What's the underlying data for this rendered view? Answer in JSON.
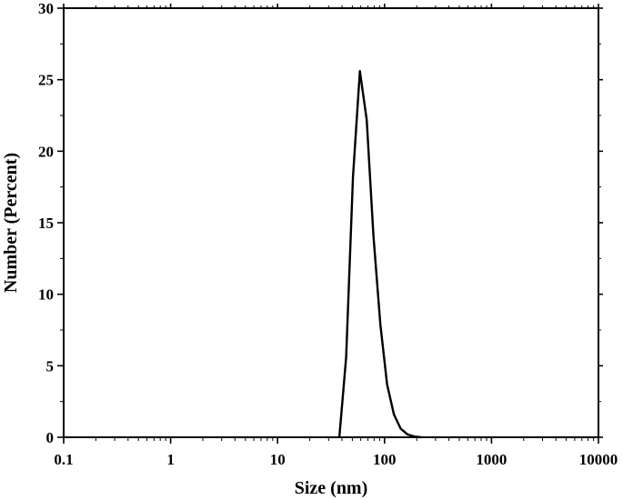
{
  "chart_data": {
    "type": "line",
    "title": "",
    "xlabel": "Size (nm)",
    "ylabel": "Number (Percent)",
    "xscale": "log",
    "xlim": [
      0.1,
      10000
    ],
    "ylim": [
      0,
      30
    ],
    "xticks": [
      "0.1",
      "1",
      "10",
      "100",
      "1000",
      "10000"
    ],
    "yticks": [
      "0",
      "5",
      "10",
      "15",
      "20",
      "25",
      "30"
    ],
    "grid": false,
    "series": [
      {
        "color": "#000000",
        "x": [
          37.8,
          43.8,
          50.7,
          58.8,
          68.1,
          78.8,
          91.3,
          105.7,
          122.4,
          141.8,
          164.2,
          190.1,
          220.2
        ],
        "y": [
          0,
          5.6,
          18.2,
          25.6,
          22.2,
          14.1,
          7.9,
          3.7,
          1.6,
          0.6,
          0.2,
          0.05,
          0
        ]
      }
    ]
  }
}
